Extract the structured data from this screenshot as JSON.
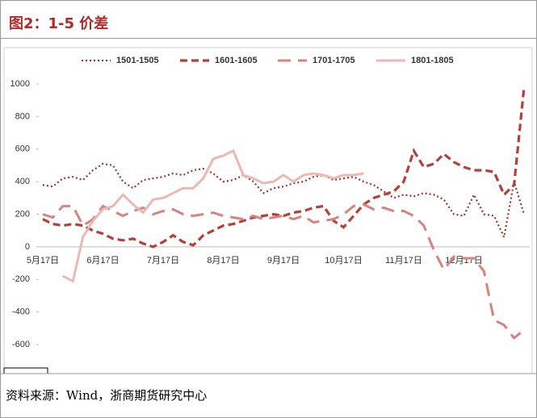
{
  "header": {
    "title": "图2：1-5 价差"
  },
  "chart_data": {
    "type": "line",
    "categories": [
      "5月17日",
      null,
      null,
      null,
      null,
      null,
      "6月17日",
      null,
      null,
      null,
      null,
      null,
      "7月17日",
      null,
      null,
      null,
      null,
      null,
      "8月17日",
      null,
      null,
      null,
      null,
      null,
      "9月17日",
      null,
      null,
      null,
      null,
      null,
      "10月17日",
      null,
      null,
      null,
      null,
      null,
      "11月17日",
      null,
      null,
      null,
      null,
      null,
      "12月17日",
      null,
      null,
      null,
      null,
      null,
      null
    ],
    "ylim": [
      -600,
      1000
    ],
    "yticks": [
      -600,
      -400,
      -200,
      0,
      200,
      400,
      600,
      800,
      1000
    ],
    "series": [
      {
        "name": "1501-1505",
        "color": "#a8302c",
        "dash": "dot",
        "values": [
          380,
          370,
          420,
          430,
          410,
          470,
          510,
          500,
          400,
          360,
          410,
          420,
          430,
          450,
          440,
          470,
          480,
          450,
          400,
          410,
          440,
          400,
          330,
          360,
          370,
          390,
          400,
          430,
          440,
          410,
          420,
          430,
          400,
          380,
          340,
          300,
          320,
          310,
          330,
          320,
          290,
          200,
          190,
          320,
          200,
          190,
          60,
          400,
          200
        ]
      },
      {
        "name": "1601-1605",
        "color": "#b5403b",
        "dash": "dash",
        "values": [
          170,
          140,
          130,
          140,
          130,
          100,
          80,
          50,
          40,
          50,
          20,
          0,
          30,
          70,
          30,
          10,
          70,
          100,
          130,
          140,
          160,
          180,
          190,
          200,
          190,
          210,
          220,
          240,
          250,
          160,
          120,
          190,
          260,
          300,
          320,
          340,
          400,
          590,
          490,
          510,
          570,
          520,
          490,
          470,
          470,
          460,
          320,
          380,
          980
        ]
      },
      {
        "name": "1701-1705",
        "color": "#d9837e",
        "dash": "longdash",
        "values": [
          200,
          180,
          250,
          250,
          130,
          170,
          250,
          220,
          190,
          220,
          240,
          200,
          220,
          230,
          200,
          190,
          200,
          210,
          190,
          180,
          170,
          190,
          170,
          180,
          190,
          170,
          190,
          150,
          160,
          170,
          200,
          250,
          260,
          230,
          240,
          220,
          220,
          190,
          130,
          -20,
          -140,
          -60,
          -70,
          -70,
          -150,
          -450,
          -480,
          -560,
          -510
        ]
      },
      {
        "name": "1801-1805",
        "color": "#ebb8b5",
        "dash": "solid",
        "values": [
          null,
          null,
          -180,
          -210,
          60,
          160,
          230,
          250,
          320,
          260,
          210,
          290,
          300,
          330,
          360,
          360,
          420,
          540,
          560,
          590,
          440,
          420,
          390,
          400,
          440,
          400,
          440,
          450,
          440,
          420,
          440,
          440,
          450,
          null,
          null,
          null,
          null,
          null,
          null,
          null,
          null,
          null,
          null,
          null,
          null,
          null,
          null,
          null,
          null
        ]
      }
    ]
  },
  "footer": {
    "source": "资料来源：Wind，浙商期货研究中心"
  }
}
